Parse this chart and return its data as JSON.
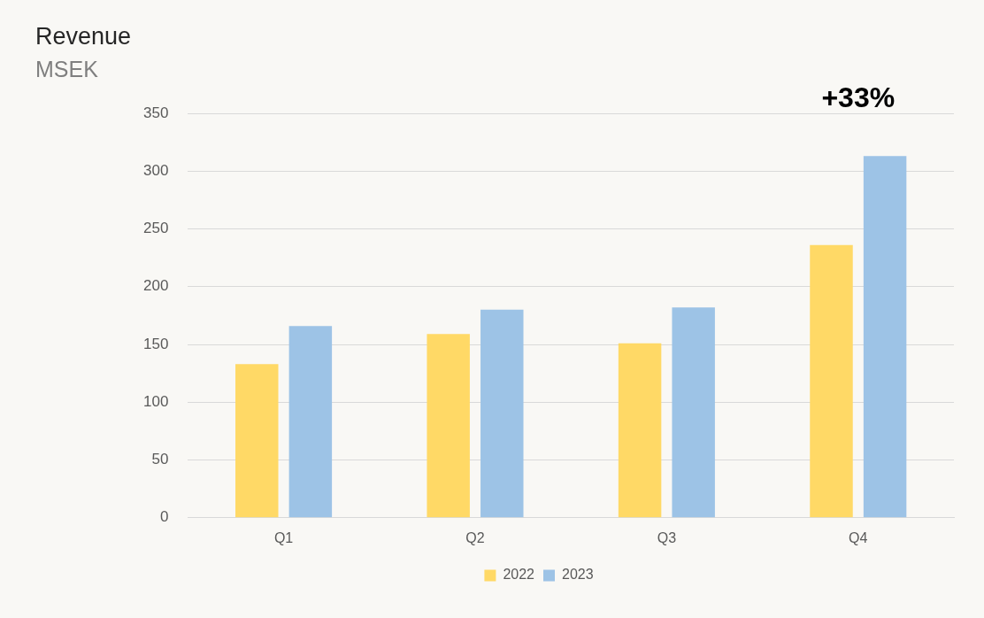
{
  "chart_data": {
    "type": "bar",
    "title": "Revenue",
    "subtitle": "MSEK",
    "categories": [
      "Q1",
      "Q2",
      "Q3",
      "Q4"
    ],
    "series": [
      {
        "name": "2022",
        "color": "#ffd966",
        "values": [
          133,
          159,
          151,
          236
        ]
      },
      {
        "name": "2023",
        "color": "#9dc3e6",
        "values": [
          166,
          180,
          182,
          313
        ]
      }
    ],
    "ylim": [
      0,
      350
    ],
    "yticks": [
      0,
      50,
      100,
      150,
      200,
      250,
      300,
      350
    ],
    "grid": "y",
    "legend": "bottom",
    "annotations": [
      "+33%"
    ]
  }
}
